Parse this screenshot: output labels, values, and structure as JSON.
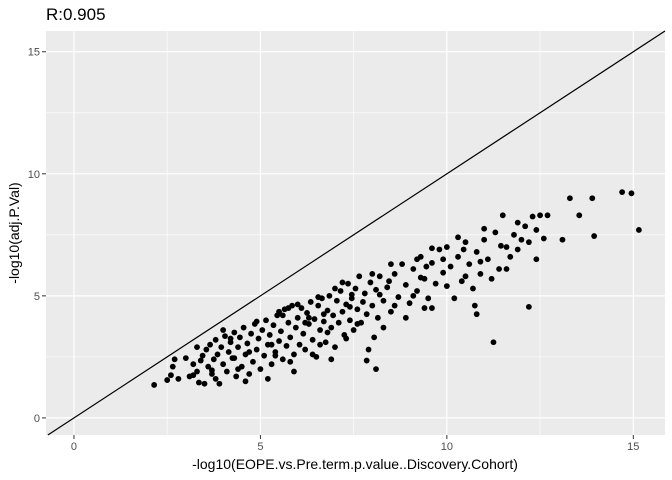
{
  "chart_data": {
    "type": "scatter",
    "title": "R:0.905",
    "xlabel": "-log10(EOPE.vs.Pre.term.p.value..Discovery.Cohort)",
    "ylabel": "-log10(adj.P.Val)",
    "xlim": [
      -0.75,
      15.85
    ],
    "ylim": [
      -0.7,
      15.85
    ],
    "x_ticks": [
      0,
      5,
      10,
      15
    ],
    "y_ticks": [
      0,
      5,
      10,
      15
    ],
    "grid": true,
    "background": "#ebebeb",
    "grid_color": "#ffffff",
    "point_color": "#000000",
    "reference_line": {
      "slope": 1,
      "intercept": 0
    },
    "points": [
      [
        2.15,
        1.35
      ],
      [
        2.5,
        1.55
      ],
      [
        2.6,
        1.75
      ],
      [
        2.65,
        2.1
      ],
      [
        2.7,
        2.4
      ],
      [
        2.8,
        1.6
      ],
      [
        3.1,
        1.7
      ],
      [
        3.2,
        2.2
      ],
      [
        3.3,
        1.9
      ],
      [
        3.35,
        1.45
      ],
      [
        3.4,
        2.35
      ],
      [
        3.45,
        2.55
      ],
      [
        3.5,
        1.4
      ],
      [
        3.55,
        2.8
      ],
      [
        3.6,
        2.1
      ],
      [
        3.65,
        3.0
      ],
      [
        3.7,
        1.8
      ],
      [
        3.75,
        2.4
      ],
      [
        3.8,
        3.2
      ],
      [
        3.85,
        2.6
      ],
      [
        3.9,
        1.4
      ],
      [
        3.95,
        2.9
      ],
      [
        4.0,
        2.2
      ],
      [
        4.05,
        3.35
      ],
      [
        4.1,
        1.9
      ],
      [
        4.15,
        2.7
      ],
      [
        4.2,
        3.1
      ],
      [
        4.25,
        2.45
      ],
      [
        4.3,
        3.5
      ],
      [
        4.35,
        1.7
      ],
      [
        4.4,
        2.9
      ],
      [
        4.45,
        3.3
      ],
      [
        4.5,
        2.1
      ],
      [
        4.55,
        3.7
      ],
      [
        4.6,
        2.6
      ],
      [
        4.65,
        3.05
      ],
      [
        4.7,
        1.8
      ],
      [
        4.75,
        3.45
      ],
      [
        4.8,
        2.3
      ],
      [
        4.85,
        3.85
      ],
      [
        4.9,
        2.8
      ],
      [
        4.95,
        3.25
      ],
      [
        5.0,
        2.0
      ],
      [
        5.05,
        3.6
      ],
      [
        5.1,
        2.55
      ],
      [
        5.15,
        4.0
      ],
      [
        5.2,
        3.0
      ],
      [
        5.25,
        3.4
      ],
      [
        5.3,
        2.2
      ],
      [
        5.35,
        3.8
      ],
      [
        5.4,
        2.7
      ],
      [
        5.45,
        4.2
      ],
      [
        5.5,
        3.15
      ],
      [
        5.55,
        3.55
      ],
      [
        5.6,
        2.4
      ],
      [
        5.65,
        4.45
      ],
      [
        5.7,
        2.95
      ],
      [
        5.75,
        3.9
      ],
      [
        5.8,
        3.3
      ],
      [
        5.85,
        4.6
      ],
      [
        5.9,
        2.6
      ],
      [
        5.95,
        3.7
      ],
      [
        6.0,
        4.1
      ],
      [
        6.05,
        3.0
      ],
      [
        6.1,
        4.5
      ],
      [
        6.15,
        3.45
      ],
      [
        6.2,
        2.8
      ],
      [
        6.25,
        4.3
      ],
      [
        6.3,
        3.85
      ],
      [
        6.35,
        4.75
      ],
      [
        6.4,
        3.2
      ],
      [
        6.45,
        4.05
      ],
      [
        6.5,
        2.5
      ],
      [
        6.55,
        4.6
      ],
      [
        6.6,
        3.6
      ],
      [
        6.65,
        4.9
      ],
      [
        6.7,
        3.95
      ],
      [
        6.75,
        3.1
      ],
      [
        6.8,
        4.4
      ],
      [
        6.85,
        5.0
      ],
      [
        6.9,
        3.7
      ],
      [
        6.95,
        4.2
      ],
      [
        7.0,
        2.9
      ],
      [
        7.05,
        4.8
      ],
      [
        7.1,
        3.9
      ],
      [
        7.15,
        5.2
      ],
      [
        7.2,
        4.35
      ],
      [
        7.25,
        3.4
      ],
      [
        7.3,
        4.65
      ],
      [
        7.35,
        5.5
      ],
      [
        7.4,
        4.0
      ],
      [
        7.45,
        4.9
      ],
      [
        7.5,
        3.6
      ],
      [
        7.55,
        5.3
      ],
      [
        7.6,
        4.45
      ],
      [
        7.65,
        5.8
      ],
      [
        7.7,
        3.9
      ],
      [
        7.75,
        4.75
      ],
      [
        7.8,
        5.1
      ],
      [
        7.85,
        4.25
      ],
      [
        7.9,
        2.8
      ],
      [
        7.95,
        5.55
      ],
      [
        8.0,
        4.6
      ],
      [
        8.05,
        3.3
      ],
      [
        8.1,
        5.25
      ],
      [
        8.15,
        4.1
      ],
      [
        8.2,
        5.8
      ],
      [
        8.3,
        4.8
      ],
      [
        8.4,
        5.35
      ],
      [
        8.5,
        4.35
      ],
      [
        8.6,
        5.9
      ],
      [
        8.7,
        4.95
      ],
      [
        8.8,
        6.3
      ],
      [
        8.9,
        5.45
      ],
      [
        9.0,
        4.7
      ],
      [
        9.1,
        6.1
      ],
      [
        9.2,
        5.2
      ],
      [
        9.3,
        6.6
      ],
      [
        9.4,
        5.7
      ],
      [
        9.5,
        4.9
      ],
      [
        9.6,
        6.35
      ],
      [
        9.7,
        5.5
      ],
      [
        9.8,
        6.9
      ],
      [
        9.9,
        5.95
      ],
      [
        10.0,
        7.0
      ],
      [
        10.1,
        6.2
      ],
      [
        10.2,
        4.9
      ],
      [
        10.3,
        6.6
      ],
      [
        10.4,
        5.6
      ],
      [
        10.5,
        7.2
      ],
      [
        10.6,
        6.3
      ],
      [
        10.7,
        5.3
      ],
      [
        10.8,
        6.8
      ],
      [
        10.9,
        5.9
      ],
      [
        11.0,
        7.3
      ],
      [
        11.1,
        6.5
      ],
      [
        11.2,
        5.7
      ],
      [
        11.3,
        7.6
      ],
      [
        11.4,
        6.1
      ],
      [
        11.5,
        8.3
      ],
      [
        11.6,
        7.0
      ],
      [
        11.7,
        6.6
      ],
      [
        11.8,
        7.5
      ],
      [
        11.9,
        6.9
      ],
      [
        12.0,
        7.3
      ],
      [
        12.1,
        7.85
      ],
      [
        12.2,
        7.2
      ],
      [
        12.3,
        8.25
      ],
      [
        12.4,
        6.5
      ],
      [
        12.5,
        8.3
      ],
      [
        12.6,
        7.35
      ],
      [
        12.7,
        8.3
      ],
      [
        13.1,
        7.3
      ],
      [
        13.3,
        9.0
      ],
      [
        13.55,
        8.3
      ],
      [
        13.9,
        9.0
      ],
      [
        13.95,
        7.45
      ],
      [
        14.7,
        9.25
      ],
      [
        14.95,
        9.2
      ],
      [
        15.15,
        7.7
      ],
      [
        11.25,
        3.1
      ],
      [
        12.2,
        4.55
      ],
      [
        10.8,
        4.25
      ],
      [
        10.75,
        4.6
      ],
      [
        9.6,
        4.5
      ],
      [
        8.1,
        2.0
      ],
      [
        7.85,
        2.35
      ],
      [
        5.2,
        1.6
      ],
      [
        4.6,
        1.5
      ],
      [
        5.9,
        1.9
      ],
      [
        6.9,
        2.4
      ],
      [
        9.9,
        6.5
      ],
      [
        10.5,
        5.8
      ],
      [
        3.3,
        2.9
      ],
      [
        4.0,
        3.6
      ],
      [
        5.6,
        4.2
      ],
      [
        6.3,
        4.1
      ],
      [
        7.0,
        5.3
      ],
      [
        8.5,
        6.3
      ],
      [
        9.2,
        6.5
      ],
      [
        9.6,
        6.95
      ],
      [
        10.3,
        7.4
      ],
      [
        11.0,
        7.75
      ],
      [
        8.0,
        5.9
      ],
      [
        7.2,
        5.55
      ],
      [
        6.0,
        4.65
      ],
      [
        5.5,
        4.35
      ],
      [
        4.9,
        3.95
      ],
      [
        4.2,
        3.25
      ],
      [
        3.0,
        2.45
      ],
      [
        5.8,
        2.3
      ],
      [
        6.6,
        3.0
      ],
      [
        7.3,
        3.25
      ],
      [
        8.3,
        3.7
      ],
      [
        8.9,
        4.1
      ],
      [
        9.4,
        4.5
      ],
      [
        6.4,
        2.6
      ],
      [
        5.4,
        2.55
      ],
      [
        4.4,
        2.0
      ],
      [
        3.8,
        1.6
      ],
      [
        6.8,
        3.5
      ],
      [
        7.6,
        3.85
      ],
      [
        8.6,
        4.6
      ],
      [
        9.1,
        5.0
      ],
      [
        10.0,
        5.4
      ],
      [
        10.9,
        6.4
      ],
      [
        11.6,
        6.1
      ],
      [
        12.4,
        7.7
      ],
      [
        11.9,
        8.0
      ],
      [
        6.2,
        3.9
      ],
      [
        6.7,
        4.25
      ],
      [
        7.4,
        4.55
      ],
      [
        8.2,
        5.05
      ],
      [
        9.3,
        5.75
      ],
      [
        5.3,
        3.0
      ],
      [
        4.7,
        2.7
      ],
      [
        4.3,
        2.45
      ],
      [
        3.7,
        1.95
      ],
      [
        3.2,
        1.75
      ],
      [
        5.75,
        4.5
      ],
      [
        6.55,
        4.95
      ],
      [
        7.45,
        5.05
      ],
      [
        8.45,
        5.6
      ],
      [
        9.45,
        6.2
      ],
      [
        10.45,
        6.9
      ],
      [
        11.45,
        7.05
      ]
    ]
  }
}
